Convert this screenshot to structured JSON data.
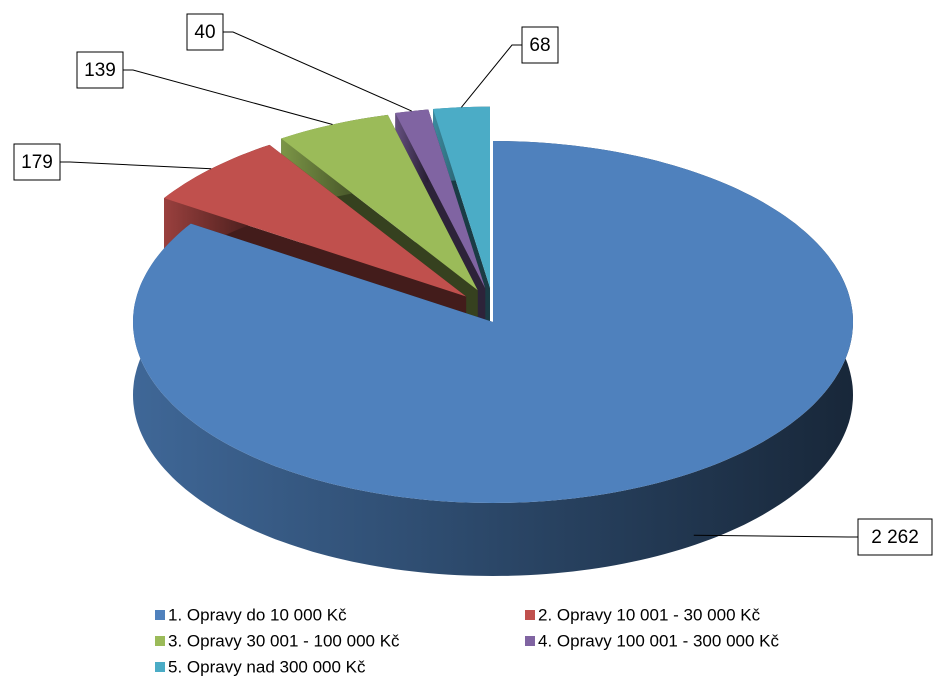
{
  "chart_data": {
    "type": "pie3d",
    "categories": [
      "1. Opravy do 10 000 Kč",
      "2. Opravy 10 001 - 30 000 Kč",
      "3. Opravy 30 001 - 100 000 Kč",
      "4. Opravy 100 001 - 300 000 Kč",
      "5. Opravy nad 300 000 Kč"
    ],
    "values": [
      2262,
      179,
      139,
      40,
      68
    ],
    "value_labels": [
      "2 262",
      "179",
      "139",
      "40",
      "68"
    ],
    "colors": [
      "#4f81bd",
      "#c0504d",
      "#9bbb59",
      "#8064a2",
      "#4bacc6"
    ],
    "legend": "bottom"
  }
}
